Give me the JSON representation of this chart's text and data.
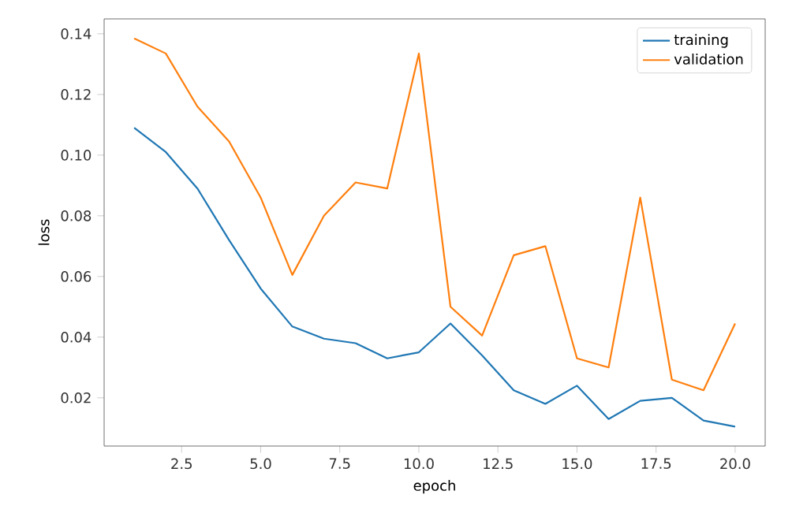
{
  "chart_data": {
    "type": "line",
    "xlabel": "epoch",
    "ylabel": "loss",
    "x": [
      1,
      2,
      3,
      4,
      5,
      6,
      7,
      8,
      9,
      10,
      11,
      12,
      13,
      14,
      15,
      16,
      17,
      18,
      19,
      20
    ],
    "series": [
      {
        "name": "training",
        "color": "#1f77b4",
        "values": [
          0.109,
          0.101,
          0.089,
          0.072,
          0.056,
          0.0435,
          0.0395,
          0.038,
          0.033,
          0.035,
          0.0445,
          0.034,
          0.0225,
          0.018,
          0.024,
          0.013,
          0.019,
          0.02,
          0.0125,
          0.0105
        ]
      },
      {
        "name": "validation",
        "color": "#ff7f0e",
        "values": [
          0.1385,
          0.1335,
          0.116,
          0.1045,
          0.086,
          0.0605,
          0.08,
          0.091,
          0.089,
          0.1335,
          0.05,
          0.0405,
          0.067,
          0.07,
          0.033,
          0.03,
          0.086,
          0.026,
          0.0225,
          0.0445
        ]
      }
    ],
    "xlim": [
      0.05,
      20.95
    ],
    "ylim": [
      0.0041,
      0.1449
    ],
    "xticks": [
      {
        "value": 2.5,
        "label": "2.5"
      },
      {
        "value": 5,
        "label": "5.0"
      },
      {
        "value": 7.5,
        "label": "7.5"
      },
      {
        "value": 10,
        "label": "10.0"
      },
      {
        "value": 12.5,
        "label": "12.5"
      },
      {
        "value": 15,
        "label": "15.0"
      },
      {
        "value": 17.5,
        "label": "17.5"
      },
      {
        "value": 20,
        "label": "20.0"
      }
    ],
    "yticks": [
      {
        "value": 0.02,
        "label": "0.02"
      },
      {
        "value": 0.04,
        "label": "0.04"
      },
      {
        "value": 0.06,
        "label": "0.06"
      },
      {
        "value": 0.08,
        "label": "0.08"
      },
      {
        "value": 0.1,
        "label": "0.10"
      },
      {
        "value": 0.12,
        "label": "0.12"
      },
      {
        "value": 0.14,
        "label": "0.14"
      }
    ],
    "grid": false,
    "legend": "top right",
    "marker": "none",
    "line_style": "solid"
  }
}
